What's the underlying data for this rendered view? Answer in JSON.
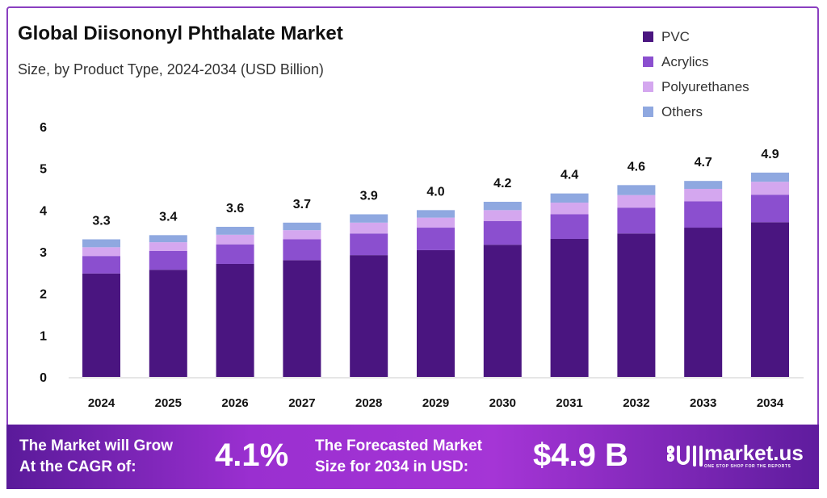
{
  "chart_data": {
    "type": "bar",
    "stacked": true,
    "title": "Global Diisononyl Phthalate Market",
    "subtitle": "Size, by Product Type, 2024-2034 (USD Billion)",
    "categories": [
      "2024",
      "2025",
      "2026",
      "2027",
      "2028",
      "2029",
      "2030",
      "2031",
      "2032",
      "2033",
      "2034"
    ],
    "series": [
      {
        "name": "PVC",
        "color": "#4a1580",
        "values": [
          2.48,
          2.57,
          2.71,
          2.8,
          2.92,
          3.04,
          3.17,
          3.31,
          3.44,
          3.58,
          3.71
        ]
      },
      {
        "name": "Acrylics",
        "color": "#8b4fcf",
        "values": [
          0.42,
          0.45,
          0.47,
          0.5,
          0.52,
          0.54,
          0.57,
          0.59,
          0.62,
          0.63,
          0.66
        ]
      },
      {
        "name": "Polyurethanes",
        "color": "#d4a7ef",
        "values": [
          0.21,
          0.21,
          0.23,
          0.22,
          0.26,
          0.24,
          0.26,
          0.28,
          0.3,
          0.3,
          0.31
        ]
      },
      {
        "name": "Others",
        "color": "#8fa8e0",
        "values": [
          0.19,
          0.17,
          0.19,
          0.18,
          0.2,
          0.18,
          0.2,
          0.22,
          0.24,
          0.19,
          0.22
        ]
      }
    ],
    "totals": [
      "3.3",
      "3.4",
      "3.6",
      "3.7",
      "3.9",
      "4.0",
      "4.2",
      "4.4",
      "4.6",
      "4.7",
      "4.9"
    ],
    "ylim": [
      0,
      6
    ],
    "yticks": [
      "0",
      "1",
      "2",
      "3",
      "4",
      "5",
      "6"
    ],
    "xlabel": "",
    "ylabel": "",
    "grid": false,
    "legend": "top-right"
  },
  "footer": {
    "cagr_text_1": "The Market will Grow",
    "cagr_text_2": "At the CAGR of:",
    "cagr_value": "4.1%",
    "forecast_text_1": "The Forecasted Market",
    "forecast_text_2": "Size for 2034 in USD:",
    "forecast_value": "$4.9 B",
    "logo_text": "market.us",
    "logo_tagline": "ONE STOP SHOP FOR THE REPORTS"
  }
}
